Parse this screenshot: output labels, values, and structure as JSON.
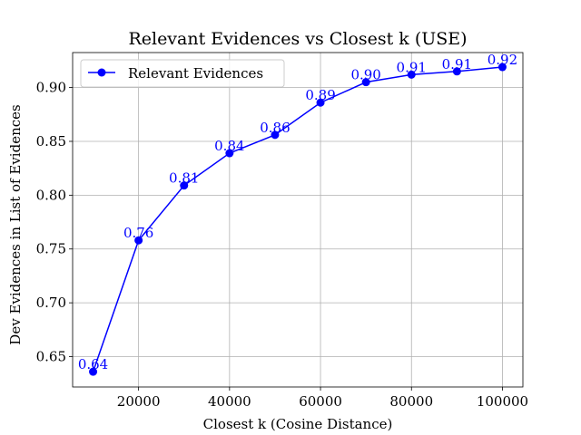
{
  "chart_data": {
    "type": "line",
    "title": "Relevant Evidences vs Closest k (USE)",
    "xlabel": "Closest k (Cosine Distance)",
    "ylabel": "Dev Evidences in List of Evidences",
    "x": [
      10000,
      20000,
      30000,
      40000,
      50000,
      60000,
      70000,
      80000,
      90000,
      100000
    ],
    "series": [
      {
        "name": "Relevant Evidences",
        "color": "#0000ff",
        "marker": "circle",
        "values": [
          0.636,
          0.758,
          0.809,
          0.839,
          0.856,
          0.886,
          0.905,
          0.912,
          0.915,
          0.919
        ],
        "labels": [
          "0.64",
          "0.76",
          "0.81",
          "0.84",
          "0.86",
          "0.89",
          "0.90",
          "0.91",
          "0.91",
          "0.92"
        ]
      }
    ],
    "xlim": [
      5500,
      104500
    ],
    "ylim": [
      0.6218,
      0.9325
    ],
    "xticks": [
      20000,
      40000,
      60000,
      80000,
      100000
    ],
    "xtick_labels": [
      "20000",
      "40000",
      "60000",
      "80000",
      "100000"
    ],
    "yticks": [
      0.65,
      0.7,
      0.75,
      0.8,
      0.85,
      0.9
    ],
    "ytick_labels": [
      "0.65",
      "0.70",
      "0.75",
      "0.80",
      "0.85",
      "0.90"
    ],
    "grid": true,
    "legend_position": "top-left"
  }
}
